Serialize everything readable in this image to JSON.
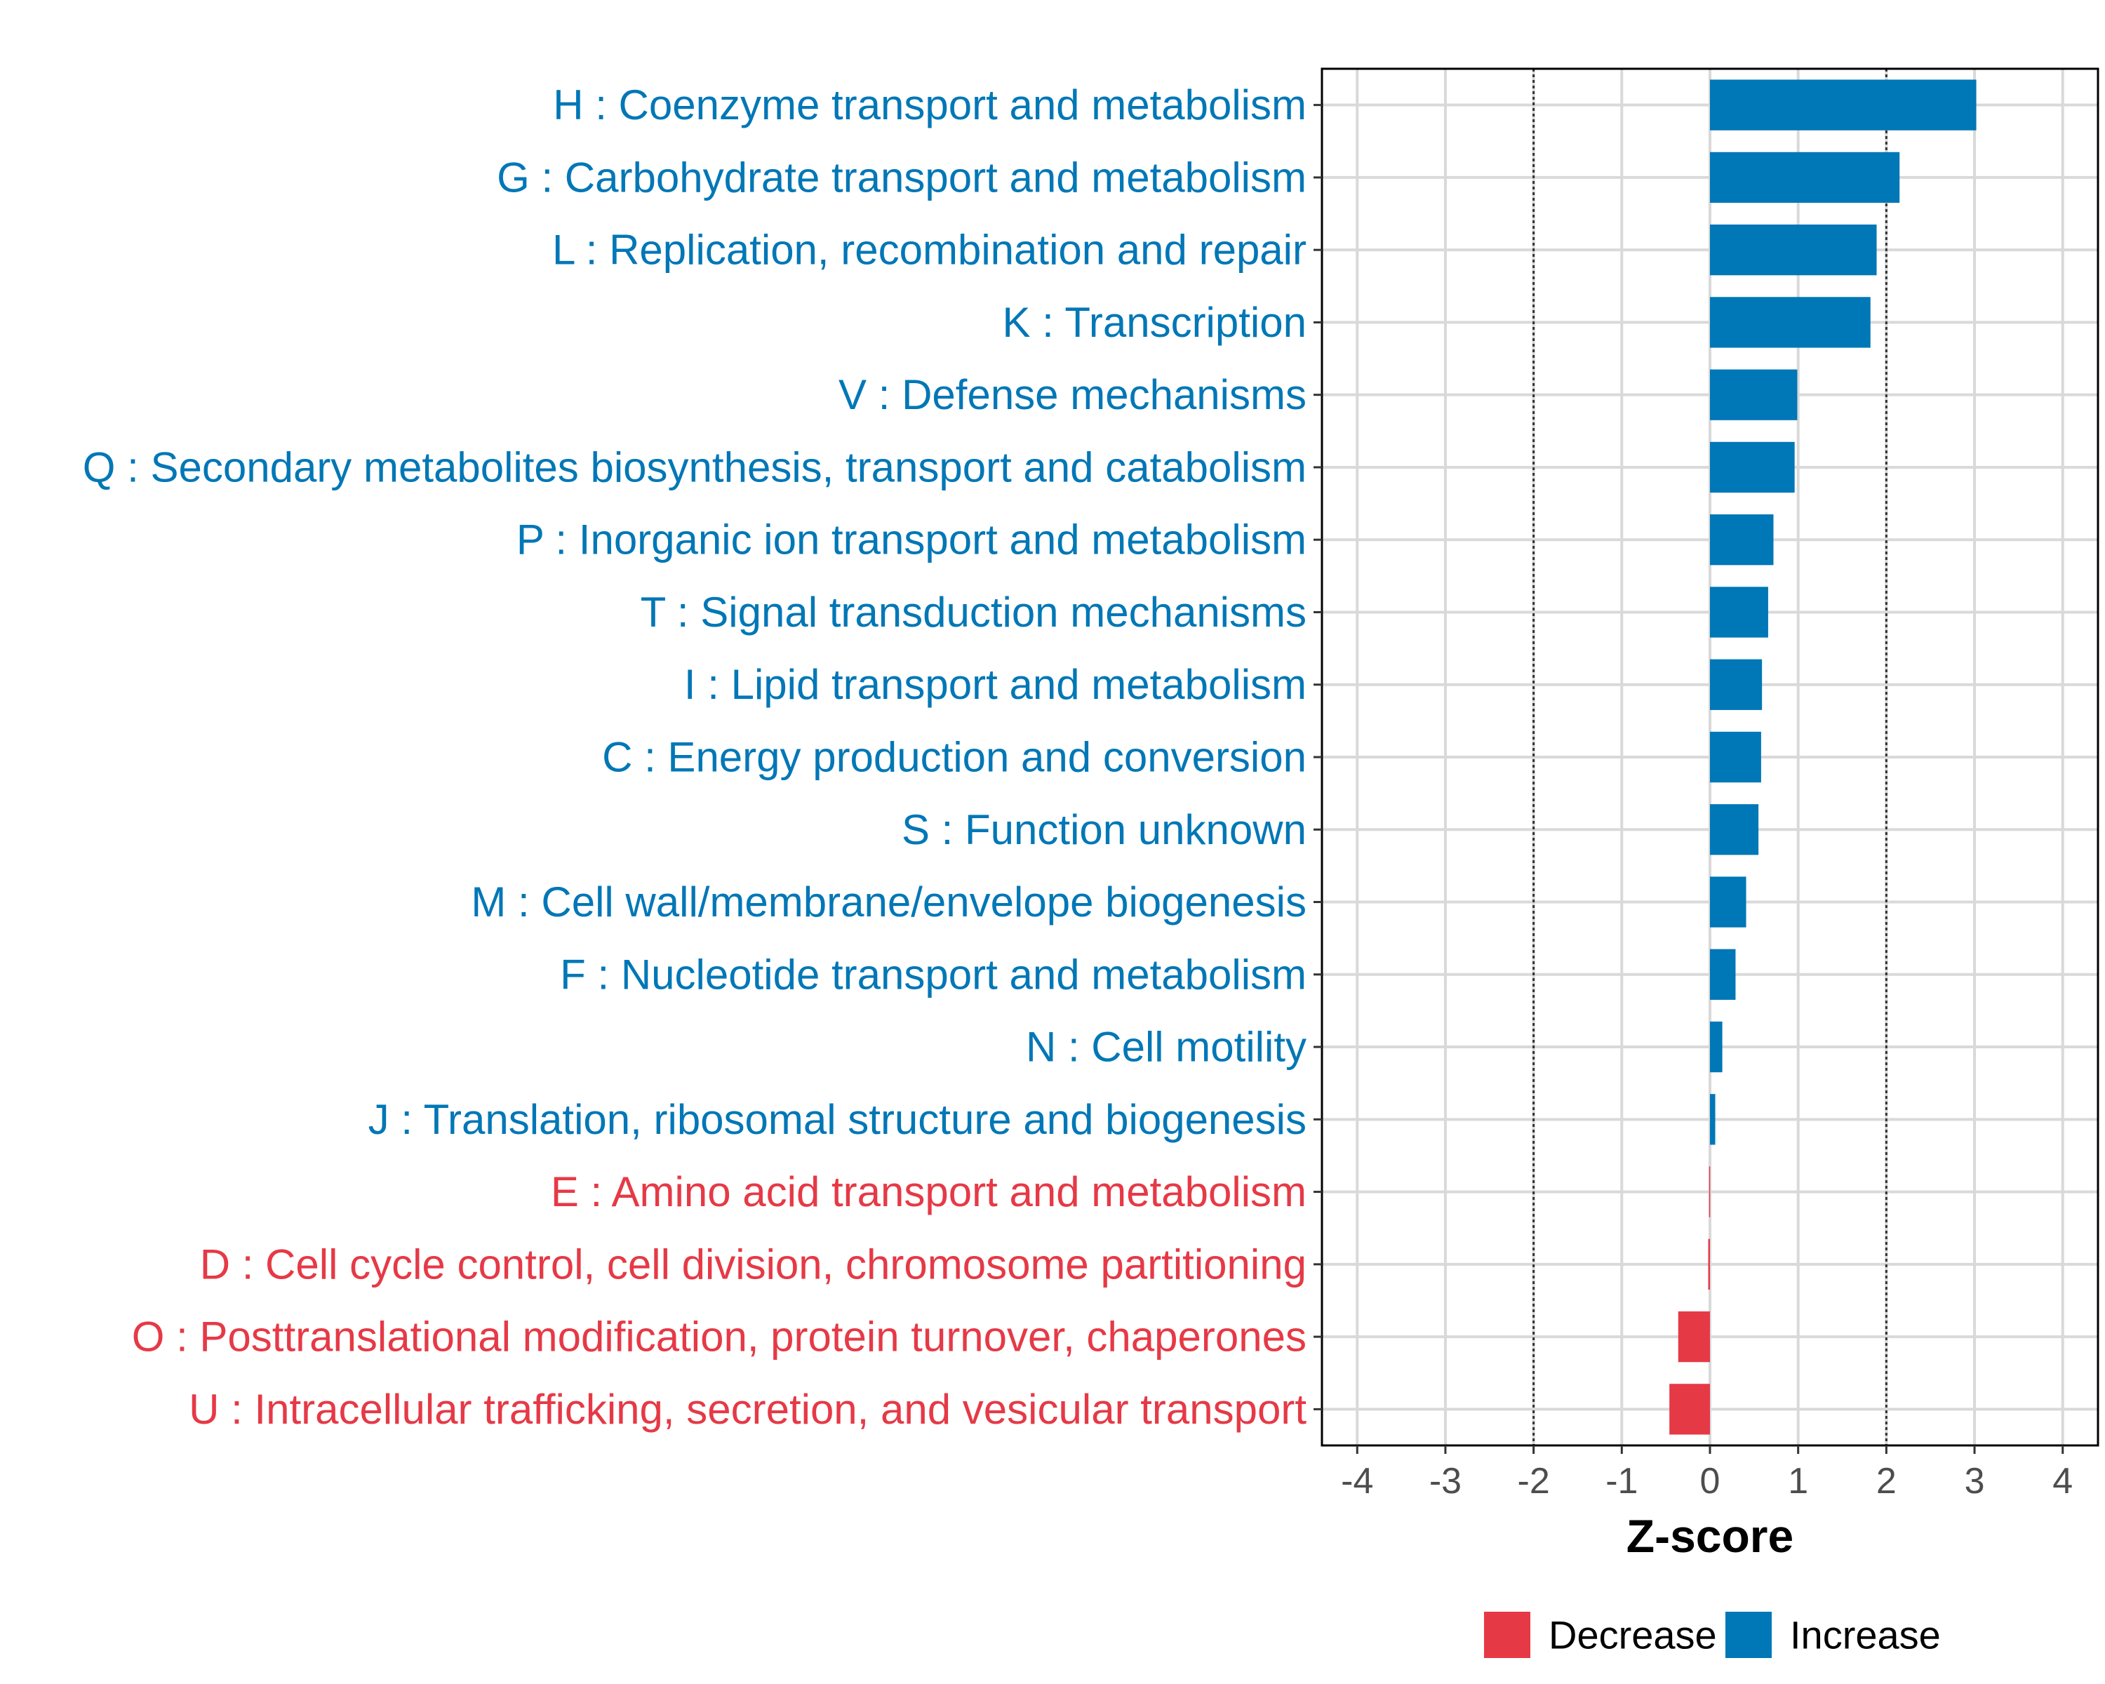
{
  "chart_data": {
    "type": "bar",
    "orientation": "horizontal",
    "xlabel": "Z-score",
    "ylabel": "",
    "xlim": [
      -4.4,
      4.4
    ],
    "x_ticks": [
      -4,
      -3,
      -2,
      -1,
      0,
      1,
      2,
      3,
      4
    ],
    "threshold_lines": [
      -2,
      2
    ],
    "grid": true,
    "legend_position": "bottom",
    "colors": {
      "Decrease": "#e63946",
      "Increase": "#0077b6"
    },
    "legend": [
      {
        "name": "Decrease",
        "color": "#e63946"
      },
      {
        "name": "Increase",
        "color": "#0077b6"
      }
    ],
    "categories": [
      "H : Coenzyme transport and metabolism",
      "G : Carbohydrate transport and metabolism",
      "L : Replication, recombination and repair",
      "K : Transcription",
      "V : Defense mechanisms",
      "Q : Secondary metabolites biosynthesis, transport and catabolism",
      "P : Inorganic ion transport and metabolism",
      "T : Signal transduction mechanisms",
      "I : Lipid transport and metabolism",
      "C : Energy production and conversion",
      "S : Function unknown",
      "M : Cell wall/membrane/envelope biogenesis",
      "F : Nucleotide transport and metabolism",
      "N : Cell motility",
      "J : Translation, ribosomal structure and biogenesis",
      "E : Amino acid transport and metabolism",
      "D : Cell cycle control, cell division, chromosome partitioning",
      "O : Posttranslational modification, protein turnover, chaperones",
      "U : Intracellular trafficking, secretion, and vesicular transport"
    ],
    "values": [
      3.02,
      2.15,
      1.89,
      1.82,
      0.99,
      0.96,
      0.72,
      0.66,
      0.59,
      0.58,
      0.55,
      0.41,
      0.29,
      0.14,
      0.06,
      -0.01,
      -0.02,
      -0.36,
      -0.46
    ],
    "groups": [
      "Increase",
      "Increase",
      "Increase",
      "Increase",
      "Increase",
      "Increase",
      "Increase",
      "Increase",
      "Increase",
      "Increase",
      "Increase",
      "Increase",
      "Increase",
      "Increase",
      "Increase",
      "Decrease",
      "Decrease",
      "Decrease",
      "Decrease"
    ]
  }
}
